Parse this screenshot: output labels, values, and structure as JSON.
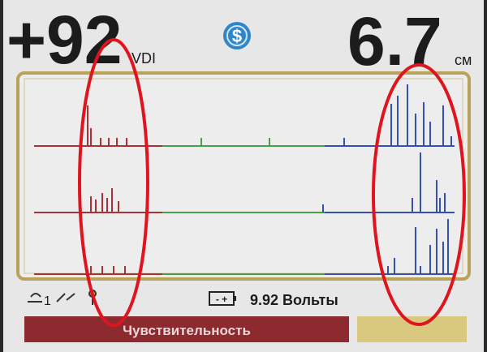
{
  "header": {
    "vdi_value": "+92",
    "vdi_unit": "VDI",
    "depth_value": "6.7",
    "depth_unit": "см"
  },
  "status": {
    "sensitivity_level": "1",
    "battery": "9.92 Вольты"
  },
  "footer": {
    "menu_label": "Чувствительность"
  }
}
